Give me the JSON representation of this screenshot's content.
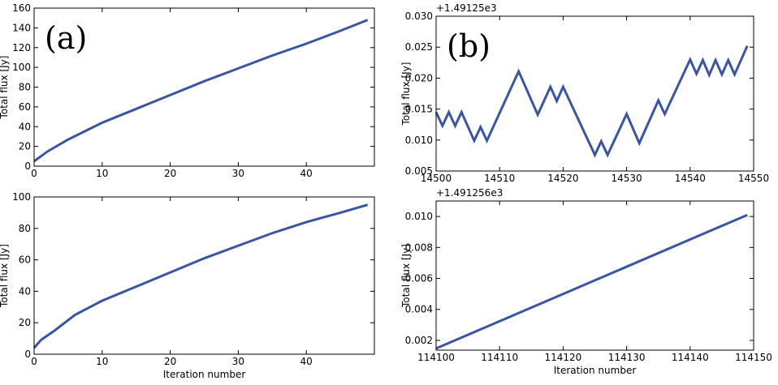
{
  "chart_data": [
    {
      "type": "line",
      "annotation": "(a)",
      "y_label": "Total flux [Jy]",
      "color": "#3a54a6",
      "x": [
        0,
        2,
        5,
        10,
        15,
        20,
        25,
        30,
        35,
        40,
        45,
        49
      ],
      "values": [
        5,
        15,
        27,
        44,
        58,
        72,
        86,
        99,
        112,
        124,
        137,
        148
      ],
      "xlim": [
        0,
        50
      ],
      "xticks": [
        0,
        10,
        20,
        30,
        40
      ],
      "ylim": [
        0,
        160
      ],
      "yticks": [
        0,
        20,
        40,
        60,
        80,
        100,
        120,
        140,
        160
      ]
    },
    {
      "type": "line",
      "x_label": "Iteration number",
      "y_label": "Total flux [Jy]",
      "color": "#3a54a6",
      "x": [
        0,
        1,
        3,
        6,
        10,
        15,
        20,
        25,
        30,
        35,
        40,
        45,
        49
      ],
      "values": [
        4,
        9,
        15,
        25,
        34,
        43,
        52,
        61,
        69,
        77,
        84,
        90,
        95
      ],
      "xlim": [
        0,
        50
      ],
      "xticks": [
        0,
        10,
        20,
        30,
        40
      ],
      "ylim": [
        0,
        100
      ],
      "yticks": [
        0,
        20,
        40,
        60,
        80,
        100
      ]
    },
    {
      "type": "line",
      "annotation": "(b)",
      "offset_text": "+1.49125e3",
      "y_label": "Total flux [Jy]",
      "color": "#3a54a6",
      "x": [
        14500,
        14501,
        14502,
        14503,
        14504,
        14506,
        14507,
        14508,
        14513,
        14516,
        14518,
        14519,
        14520,
        14525,
        14526,
        14527,
        14530,
        14532,
        14535,
        14536,
        14540,
        14541,
        14542,
        14543,
        14544,
        14545,
        14546,
        14547,
        14549
      ],
      "values": [
        0.0145,
        0.0123,
        0.0145,
        0.0123,
        0.0145,
        0.0099,
        0.0121,
        0.0099,
        0.0211,
        0.0141,
        0.0186,
        0.0163,
        0.0186,
        0.0076,
        0.0098,
        0.0076,
        0.0142,
        0.0095,
        0.0164,
        0.0142,
        0.023,
        0.0207,
        0.0229,
        0.0205,
        0.0229,
        0.0206,
        0.0229,
        0.0206,
        0.0252
      ],
      "xlim": [
        14500,
        14550
      ],
      "xticks": [
        14500,
        14510,
        14520,
        14530,
        14540,
        14550
      ],
      "ylim": [
        0.005,
        0.03
      ],
      "yticks": [
        0.005,
        {
          "value": 0.01,
          "label": "0.010"
        },
        0.015,
        {
          "value": 0.02,
          "label": "0.020"
        },
        0.025,
        {
          "value": 0.03,
          "label": "0.030"
        }
      ]
    },
    {
      "type": "line",
      "offset_text": "+1.491256e3",
      "x_label": "Iteration number",
      "y_label": "Total flux [Jy]",
      "color": "#3a54a6",
      "x": [
        114100,
        114149
      ],
      "values": [
        0.00148,
        0.0101
      ],
      "xlim": [
        114100,
        114150
      ],
      "xticks": [
        114100,
        114110,
        114120,
        114130,
        114140,
        114150
      ],
      "ylim": [
        0.00137,
        0.011
      ],
      "yticks": [
        0.002,
        0.004,
        0.006,
        0.008,
        {
          "value": 0.01,
          "label": "0.010"
        }
      ]
    }
  ]
}
